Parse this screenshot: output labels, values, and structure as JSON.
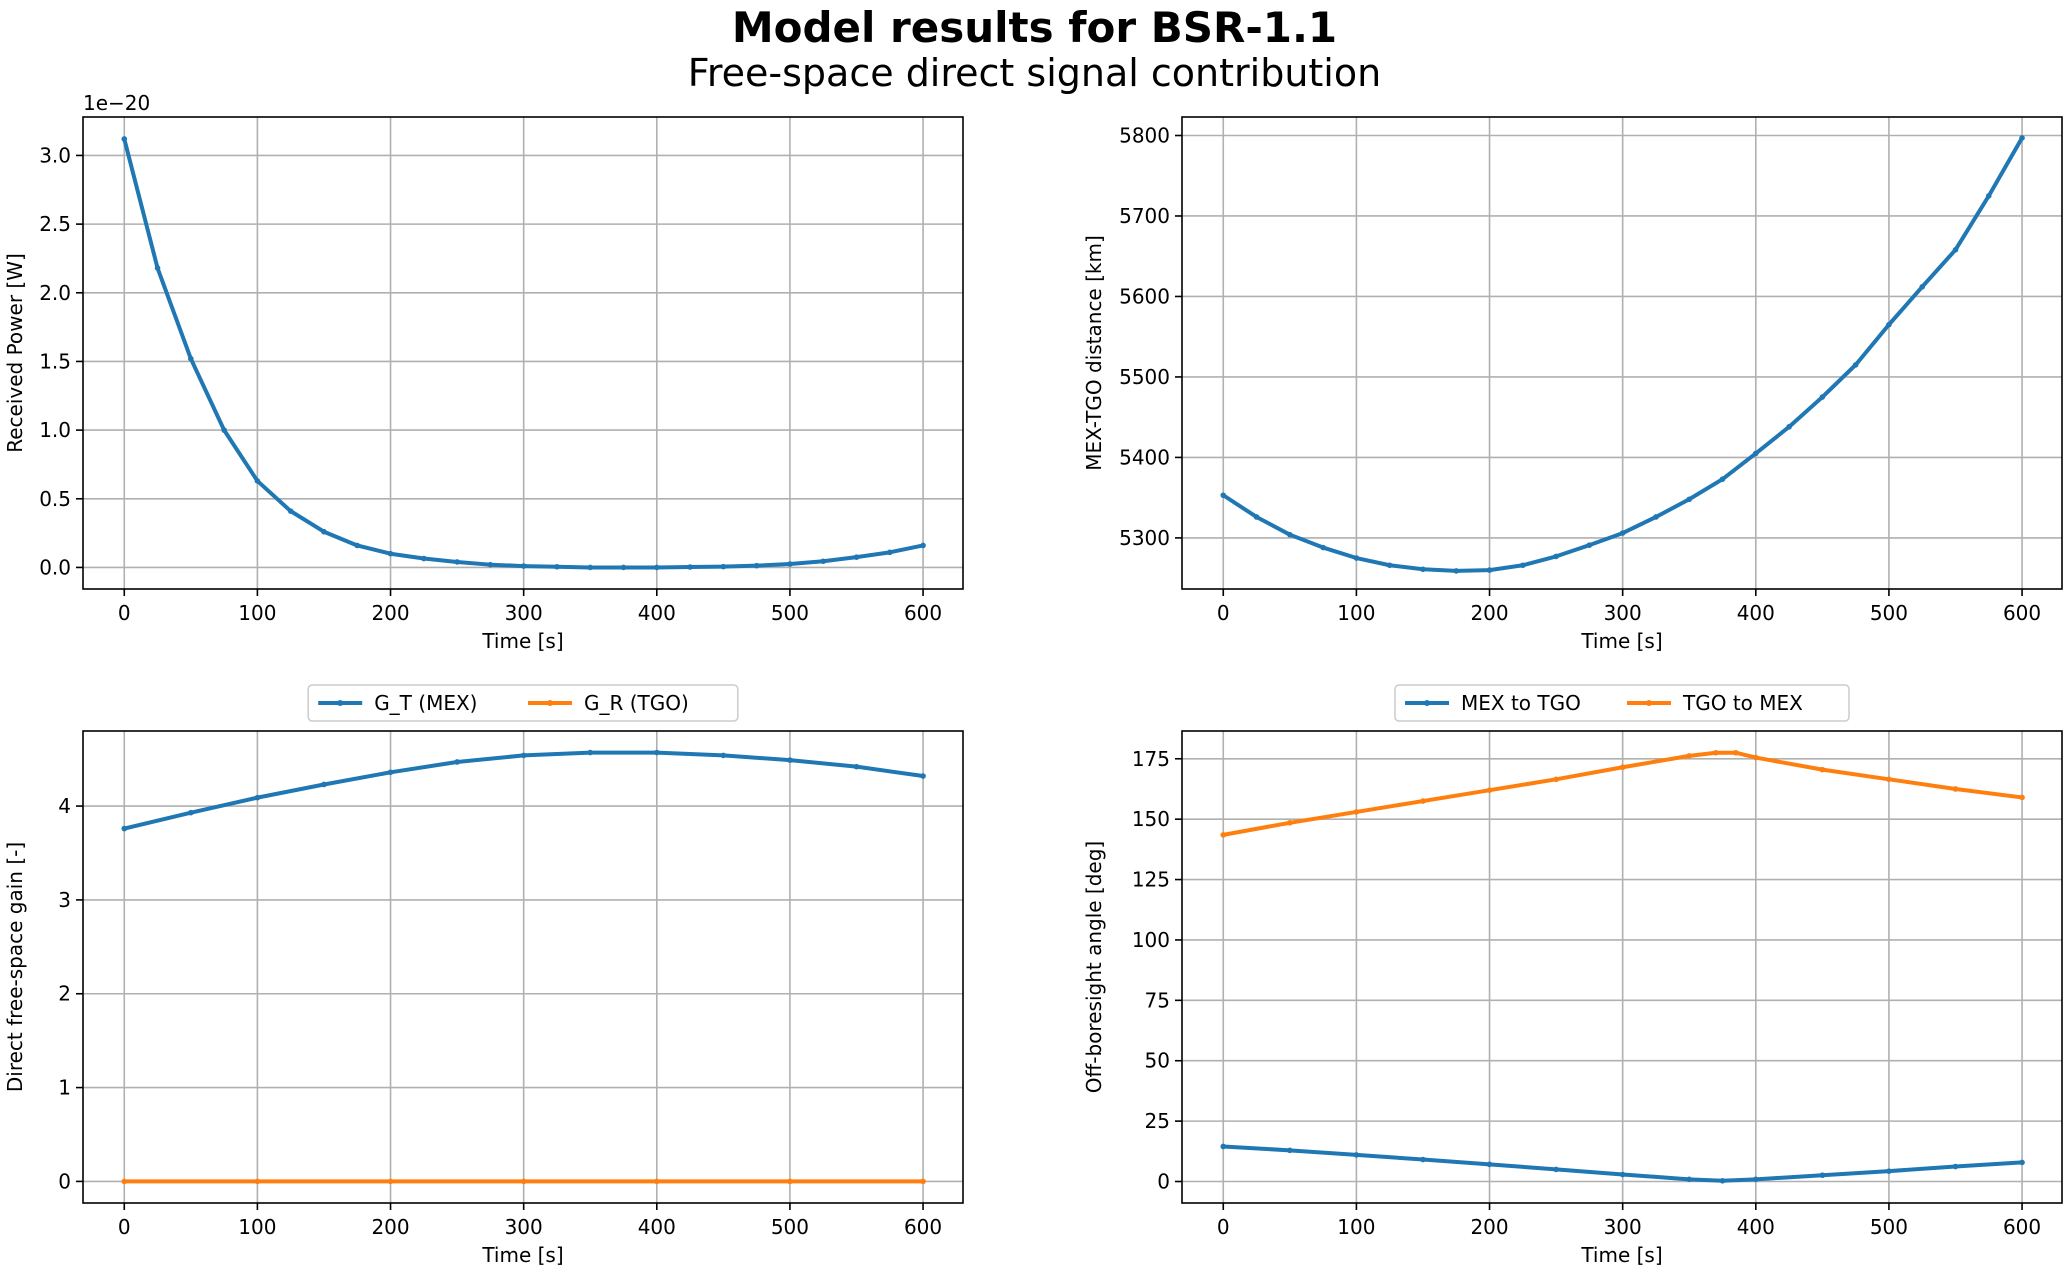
{
  "figure": {
    "title": "Model results for BSR-1.1",
    "subtitle": "Free-space direct signal contribution"
  },
  "colors": {
    "blue": "#1f77b4",
    "orange": "#ff7f0e",
    "grid": "#b0b0b0"
  },
  "chart_data": [
    {
      "type": "line",
      "xlabel": "Time [s]",
      "ylabel": "Received Power [W]",
      "offset_text": "1e−20",
      "xlim": [
        -31,
        630
      ],
      "ylim": [
        -0.157,
        3.28
      ],
      "xticks": [
        0,
        100,
        200,
        300,
        400,
        500,
        600
      ],
      "yticks": [
        0.0,
        0.5,
        1.0,
        1.5,
        2.0,
        2.5,
        3.0
      ],
      "ytick_decimals": 1,
      "grid": true,
      "series": [
        {
          "color": "#1f77b4",
          "x": [
            0,
            25,
            50,
            75,
            100,
            125,
            150,
            175,
            200,
            225,
            250,
            275,
            300,
            325,
            350,
            375,
            400,
            425,
            450,
            475,
            500,
            525,
            550,
            575,
            600
          ],
          "y": [
            3.12,
            2.18,
            1.52,
            1.0,
            0.63,
            0.41,
            0.26,
            0.16,
            0.1,
            0.065,
            0.04,
            0.02,
            0.01,
            0.005,
            0.0,
            0.0,
            0.0,
            0.003,
            0.006,
            0.013,
            0.025,
            0.045,
            0.075,
            0.11,
            0.16
          ]
        }
      ]
    },
    {
      "type": "line",
      "xlabel": "Time [s]",
      "ylabel": "MEX-TGO distance [km]",
      "xlim": [
        -31,
        630
      ],
      "ylim": [
        5236.5,
        5823
      ],
      "xticks": [
        0,
        100,
        200,
        300,
        400,
        500,
        600
      ],
      "yticks": [
        5300,
        5400,
        5500,
        5600,
        5700,
        5800
      ],
      "ytick_decimals": 0,
      "grid": true,
      "series": [
        {
          "color": "#1f77b4",
          "x": [
            0,
            25,
            50,
            75,
            100,
            125,
            150,
            175,
            200,
            225,
            250,
            275,
            300,
            325,
            350,
            375,
            400,
            425,
            450,
            475,
            500,
            525,
            550,
            575,
            600
          ],
          "y": [
            5353,
            5326,
            5304,
            5288,
            5275,
            5266,
            5261,
            5259,
            5260,
            5266,
            5277,
            5291,
            5306,
            5326,
            5348,
            5373,
            5405,
            5438,
            5475,
            5515,
            5565,
            5612,
            5658,
            5725,
            5797
          ]
        }
      ]
    },
    {
      "type": "line",
      "xlabel": "Time [s]",
      "ylabel": "Direct free-space gain [-]",
      "xlim": [
        -31,
        630
      ],
      "ylim": [
        -0.23,
        4.8
      ],
      "xticks": [
        0,
        100,
        200,
        300,
        400,
        500,
        600
      ],
      "yticks": [
        0,
        1,
        2,
        3,
        4
      ],
      "ytick_decimals": 0,
      "grid": true,
      "legend": "above-center",
      "series": [
        {
          "name": "G_T (MEX)",
          "color": "#1f77b4",
          "x": [
            0,
            50,
            100,
            150,
            200,
            250,
            300,
            350,
            400,
            450,
            500,
            550,
            600
          ],
          "y": [
            3.76,
            3.93,
            4.09,
            4.23,
            4.36,
            4.47,
            4.54,
            4.57,
            4.57,
            4.54,
            4.49,
            4.42,
            4.32
          ]
        },
        {
          "name": "G_R (TGO)",
          "color": "#ff7f0e",
          "x": [
            0,
            100,
            200,
            300,
            400,
            500,
            600
          ],
          "y": [
            0,
            0,
            0,
            0,
            0,
            0,
            0
          ]
        }
      ]
    },
    {
      "type": "line",
      "xlabel": "Time [s]",
      "ylabel": "Off-boresight angle [deg]",
      "xlim": [
        -31,
        630
      ],
      "ylim": [
        -8.9,
        186.5
      ],
      "xticks": [
        0,
        100,
        200,
        300,
        400,
        500,
        600
      ],
      "yticks": [
        0,
        25,
        50,
        75,
        100,
        125,
        150,
        175
      ],
      "ytick_decimals": 0,
      "grid": true,
      "legend": "above-center",
      "series": [
        {
          "name": "MEX to TGO",
          "color": "#1f77b4",
          "x": [
            0,
            50,
            100,
            150,
            200,
            250,
            300,
            350,
            375,
            400,
            450,
            500,
            550,
            600
          ],
          "y": [
            14.5,
            12.9,
            11.0,
            9.1,
            7.1,
            5.0,
            2.9,
            0.9,
            0.3,
            0.9,
            2.6,
            4.3,
            6.2,
            7.9
          ]
        },
        {
          "name": "TGO to MEX",
          "color": "#ff7f0e",
          "x": [
            0,
            50,
            100,
            150,
            200,
            250,
            300,
            350,
            370,
            385,
            400,
            450,
            500,
            550,
            600
          ],
          "y": [
            143.5,
            148.5,
            153,
            157.5,
            162,
            166.5,
            171.5,
            176.2,
            177.5,
            177.5,
            175.5,
            170.5,
            166.5,
            162.5,
            159
          ]
        }
      ]
    }
  ]
}
